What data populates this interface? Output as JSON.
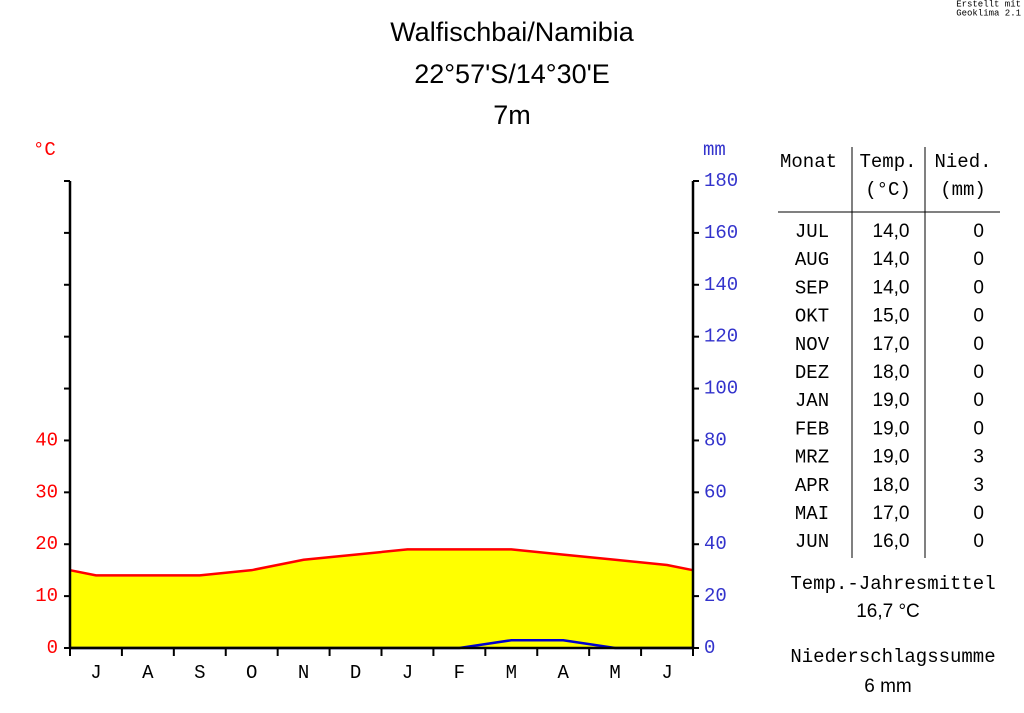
{
  "chart_data": {
    "type": "climate",
    "title": "Walfischbai/Namibia",
    "subtitle": "22°57'S/14°30'E",
    "elevation": "7m",
    "credit": [
      "Erstellt mit",
      "Geoklima 2.1"
    ],
    "y_label": "°C",
    "y2_label": "mm",
    "categories": [
      "J",
      "A",
      "S",
      "O",
      "N",
      "D",
      "J",
      "F",
      "M",
      "A",
      "M",
      "J"
    ],
    "series": [
      {
        "name": "Temp.",
        "color": "#ff0000",
        "fill": "#ffff00",
        "values": [
          14,
          14,
          14,
          15,
          17,
          18,
          19,
          19,
          19,
          18,
          17,
          16
        ],
        "value_labels": [
          "14,0",
          "14,0",
          "14,0",
          "15,0",
          "17,0",
          "18,0",
          "19,0",
          "19,0",
          "19,0",
          "18,0",
          "17,0",
          "16,0"
        ]
      },
      {
        "name": "Nied.",
        "color": "#0000cc",
        "axis": "y2",
        "values": [
          0,
          0,
          0,
          0,
          0,
          0,
          0,
          0,
          3,
          3,
          0,
          0
        ]
      }
    ],
    "ylim": [
      0,
      90
    ],
    "yticks": [
      0,
      10,
      20,
      30,
      40
    ],
    "y2lim": [
      0,
      180
    ],
    "y2ticks": [
      0,
      20,
      40,
      60,
      80,
      100,
      120,
      140,
      160,
      180
    ]
  },
  "table": {
    "header": [
      "Monat",
      "Temp.",
      "(°C)",
      "Nied.",
      "(mm)"
    ],
    "months": [
      "JUL",
      "AUG",
      "SEP",
      "OKT",
      "NOV",
      "DEZ",
      "JAN",
      "FEB",
      "MRZ",
      "APR",
      "MAI",
      "JUN"
    ]
  },
  "summary": {
    "temp_label": "Temp.-Jahresmittel",
    "temp_value": "16,7 °C",
    "precip_label": "Niederschlagssumme",
    "precip_value": "6 mm"
  }
}
